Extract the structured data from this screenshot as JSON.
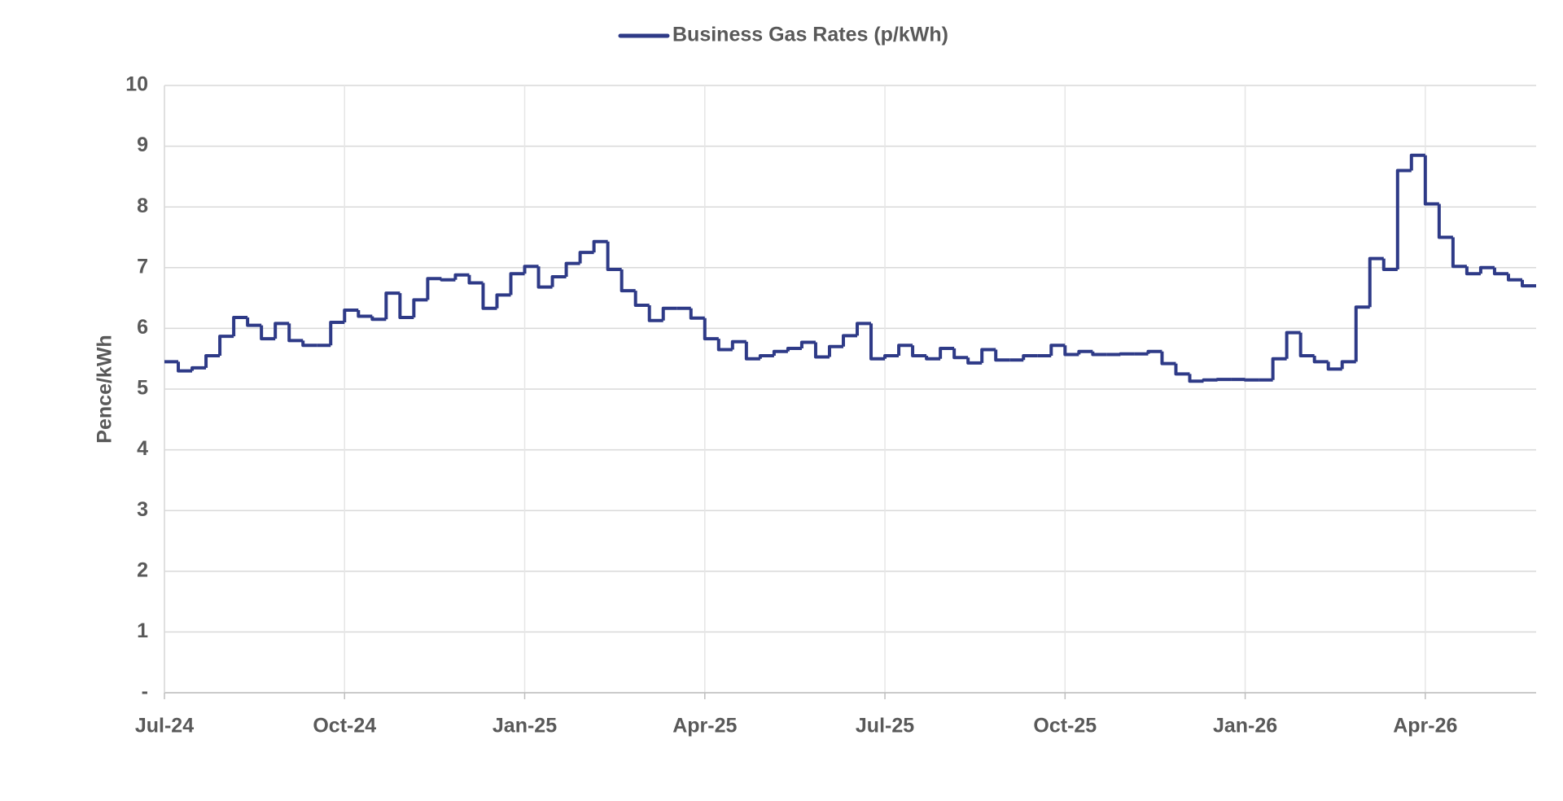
{
  "chart_data": {
    "type": "step-line",
    "y_label": "Pence/kWh",
    "categories": [
      "Jul-24",
      null,
      null,
      null,
      null,
      null,
      null,
      null,
      null,
      null,
      null,
      null,
      null,
      "Oct-24",
      null,
      null,
      null,
      null,
      null,
      null,
      null,
      null,
      null,
      null,
      null,
      null,
      "Jan-25",
      null,
      null,
      null,
      null,
      null,
      null,
      null,
      null,
      null,
      null,
      null,
      null,
      "Apr-25",
      null,
      null,
      null,
      null,
      null,
      null,
      null,
      null,
      null,
      null,
      null,
      null,
      "Jul-25",
      null,
      null,
      null,
      null,
      null,
      null,
      null,
      null,
      null,
      null,
      null,
      null,
      "Oct-25",
      null,
      null,
      null,
      null,
      null,
      null,
      null,
      null,
      null,
      null,
      null,
      null,
      "Jan-26",
      null,
      null,
      null,
      null,
      null,
      null,
      null,
      null,
      null,
      null,
      null,
      null,
      "Apr-26",
      null,
      null,
      null,
      null,
      null,
      null,
      null
    ],
    "series": [
      {
        "name": "Business Gas Rates (p/kWh)",
        "color": "#2e3a87",
        "values": [
          5.45,
          5.3,
          5.35,
          5.55,
          5.87,
          6.18,
          6.05,
          5.83,
          6.08,
          5.8,
          5.72,
          5.72,
          6.1,
          6.3,
          6.2,
          6.15,
          6.58,
          6.18,
          6.47,
          6.82,
          6.8,
          6.88,
          6.75,
          6.33,
          6.55,
          6.9,
          7.02,
          6.68,
          6.85,
          7.07,
          7.25,
          7.43,
          6.97,
          6.62,
          6.38,
          6.13,
          6.33,
          6.33,
          6.17,
          5.83,
          5.65,
          5.78,
          5.5,
          5.55,
          5.62,
          5.67,
          5.77,
          5.53,
          5.7,
          5.88,
          6.08,
          5.5,
          5.55,
          5.72,
          5.55,
          5.5,
          5.67,
          5.52,
          5.43,
          5.65,
          5.48,
          5.48,
          5.55,
          5.55,
          5.72,
          5.57,
          5.62,
          5.57,
          5.57,
          5.58,
          5.58,
          5.62,
          5.42,
          5.25,
          5.13,
          5.15,
          5.16,
          5.16,
          5.15,
          5.15,
          5.5,
          5.93,
          5.55,
          5.45,
          5.33,
          5.45,
          6.35,
          7.15,
          6.97,
          8.6,
          8.85,
          8.05,
          7.5,
          7.02,
          6.9,
          7.0,
          6.9,
          6.8,
          6.7
        ]
      }
    ],
    "ylim": [
      0,
      10
    ],
    "yticks": [
      {
        "value": 0,
        "label": "-"
      },
      1,
      2,
      3,
      4,
      5,
      6,
      7,
      8,
      9,
      10
    ],
    "grid": true,
    "legend": "top"
  }
}
